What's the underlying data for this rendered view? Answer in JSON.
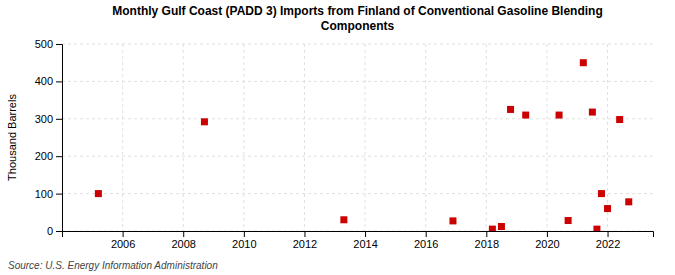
{
  "chart_data": {
    "type": "scatter",
    "title": "Monthly Gulf Coast (PADD 3) Imports from Finland of Conventional Gasoline Blending\nComponents",
    "ylabel": "Thousand Barrels",
    "source": "Source: U.S. Energy Information Administration",
    "x": [
      2005.2,
      2008.7,
      2013.3,
      2016.9,
      2018.2,
      2018.5,
      2018.8,
      2019.3,
      2020.4,
      2020.7,
      2021.2,
      2021.5,
      2021.65,
      2021.8,
      2022.0,
      2022.4,
      2022.7
    ],
    "values": [
      100,
      292,
      30,
      27,
      5,
      12,
      325,
      310,
      310,
      28,
      450,
      318,
      5,
      100,
      60,
      298,
      78
    ],
    "xlim": [
      2004.0,
      2023.5
    ],
    "ylim": [
      0,
      500
    ],
    "xticks": [
      2006,
      2008,
      2010,
      2012,
      2014,
      2016,
      2018,
      2020,
      2022
    ],
    "yticks": [
      0,
      100,
      200,
      300,
      400,
      500
    ],
    "grid": true,
    "marker": "square",
    "color": "#cc0000"
  }
}
